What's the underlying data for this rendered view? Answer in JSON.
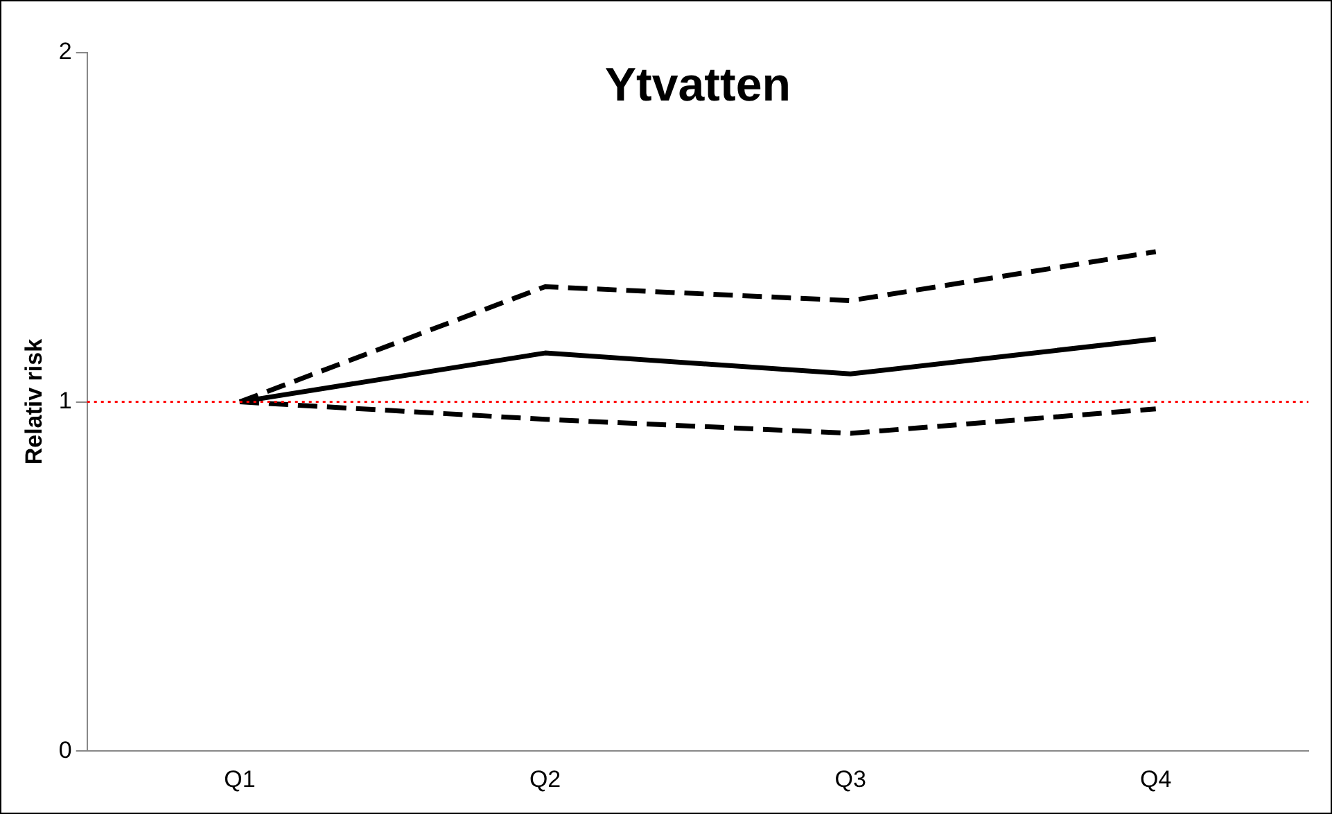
{
  "chart_data": {
    "type": "line",
    "title": "Ytvatten",
    "ylabel": "Relativ risk",
    "categories": [
      "Q1",
      "Q2",
      "Q3",
      "Q4"
    ],
    "series": [
      {
        "color": "#000000",
        "values": [
          1,
          1.14,
          1.08,
          1.18
        ],
        "line_style": "solid"
      },
      {
        "color": "#000000",
        "values": [
          1,
          1.33,
          1.29,
          1.43
        ],
        "line_style": "dashed"
      },
      {
        "color": "#000000",
        "values": [
          1,
          0.95,
          0.91,
          0.98
        ],
        "line_style": "dashed"
      }
    ],
    "ylim": [
      0,
      2
    ],
    "yticks": [
      0,
      1,
      2
    ],
    "grid": false,
    "legend": false,
    "marker": "none",
    "ref_lines": [
      {
        "axis": "y",
        "value": 1,
        "color": "#ff0000",
        "line_style": "dotted"
      }
    ]
  }
}
